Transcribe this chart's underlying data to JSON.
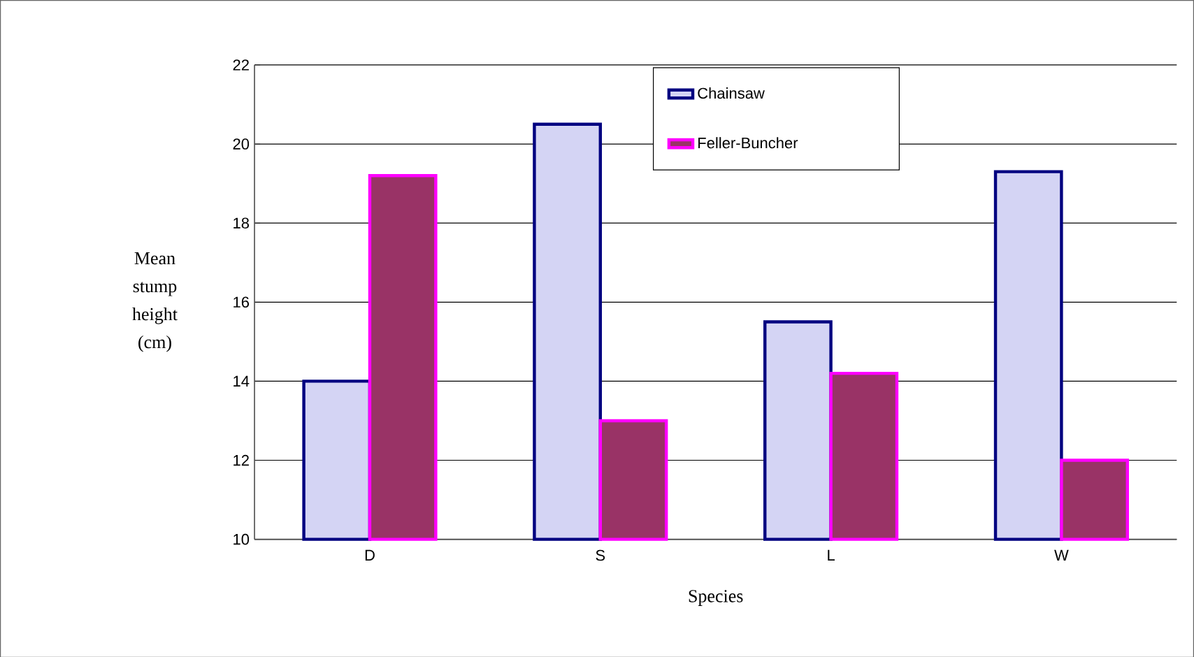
{
  "chart_data": {
    "type": "bar",
    "xlabel": "Species",
    "ylabel": "Mean stump height (cm)",
    "categories": [
      "D",
      "S",
      "L",
      "W"
    ],
    "series": [
      {
        "name": "Chainsaw",
        "color": "#d4d4f4",
        "values": [
          14.0,
          20.5,
          15.5,
          19.3
        ]
      },
      {
        "name": "Feller-Buncher",
        "color": "#993366",
        "values": [
          19.2,
          13.0,
          14.2,
          12.0
        ]
      }
    ],
    "ylim": [
      10,
      22
    ],
    "yticks": [
      10,
      12,
      14,
      16,
      18,
      20,
      22
    ],
    "grid": "y",
    "legend": "top"
  }
}
